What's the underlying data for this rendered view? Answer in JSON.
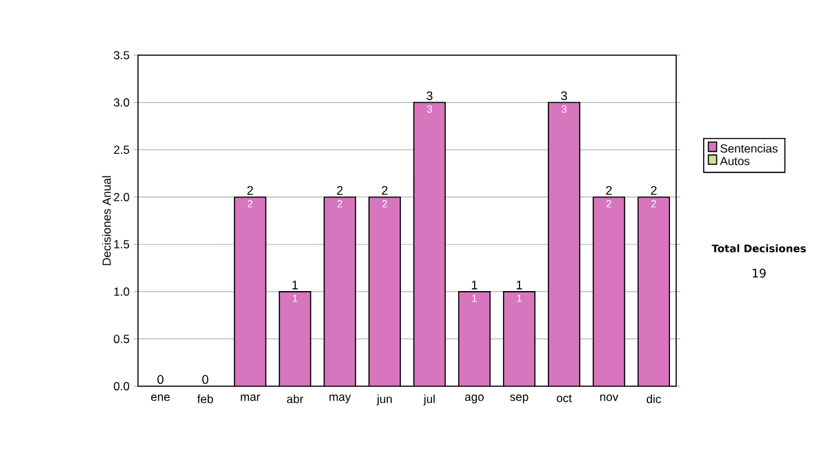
{
  "chart_data": {
    "type": "bar",
    "stacked": true,
    "ylabel": "Decisiones Anual",
    "categories": [
      "ene",
      "feb",
      "mar",
      "abr",
      "may",
      "jun",
      "jul",
      "ago",
      "sep",
      "oct",
      "nov",
      "dic"
    ],
    "series": [
      {
        "name": "Sentencias",
        "color": "#d775be",
        "values": [
          0,
          0,
          2,
          1,
          2,
          2,
          3,
          1,
          1,
          3,
          2,
          2
        ],
        "value_labels": [
          null,
          null,
          "2",
          "1",
          "2",
          "2",
          "3",
          "1",
          "1",
          "3",
          "2",
          "2"
        ]
      },
      {
        "name": "Autos",
        "color": "#cce0a0",
        "values": [
          0,
          0,
          0,
          0,
          0,
          0,
          0,
          0,
          0,
          0,
          0,
          0
        ]
      }
    ],
    "totals": [
      "0",
      "0",
      "2",
      "1",
      "2",
      "2",
      "3",
      "1",
      "1",
      "3",
      "2",
      "2"
    ],
    "ylim": [
      0,
      3.5
    ],
    "yticks": [
      {
        "value": 0,
        "label": "0.0"
      },
      {
        "value": 0.5,
        "label": "0.5"
      },
      {
        "value": 1,
        "label": "1.0"
      },
      {
        "value": 1.5,
        "label": "1.5"
      },
      {
        "value": 2,
        "label": "2.0"
      },
      {
        "value": 2.5,
        "label": "2.5"
      },
      {
        "value": 3,
        "label": "3.0"
      },
      {
        "value": 3.5,
        "label": "3.5"
      }
    ],
    "grid": "y",
    "legend": "right",
    "annotations": [
      "Total Decisiones",
      "19"
    ]
  }
}
